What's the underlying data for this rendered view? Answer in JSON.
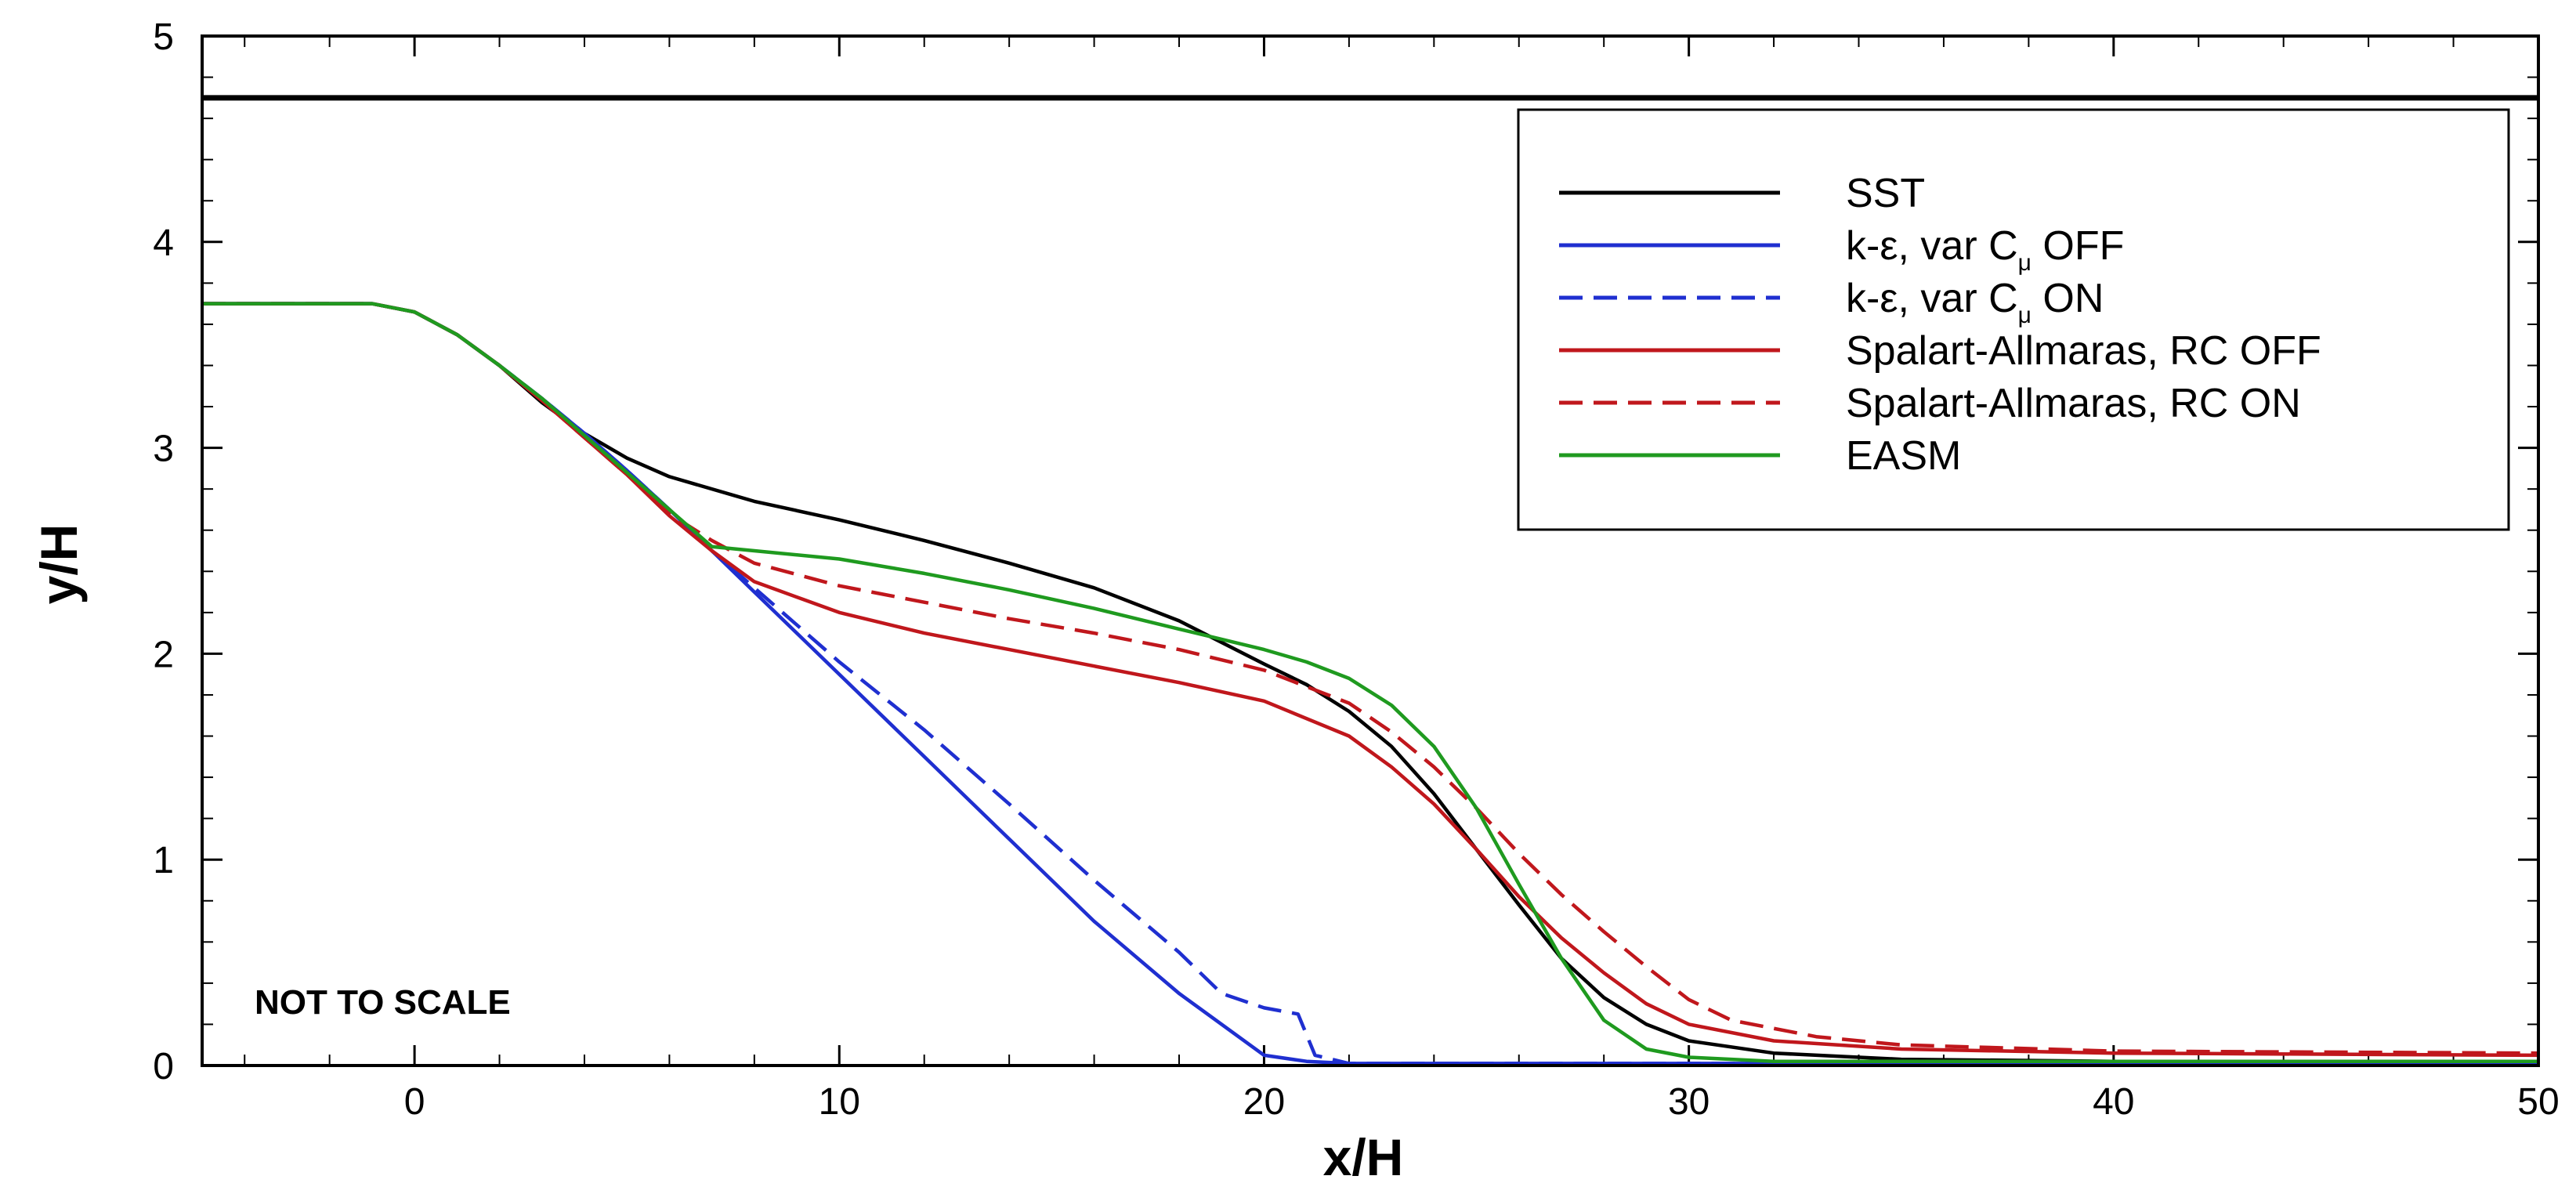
{
  "chart_data": {
    "type": "line",
    "xlabel": "x/H",
    "ylabel": "y/H",
    "xlim": [
      -5,
      50
    ],
    "ylim": [
      0,
      5
    ],
    "xticks": [
      0,
      10,
      20,
      30,
      40,
      50
    ],
    "yticks": [
      0,
      1,
      2,
      3,
      4,
      5
    ],
    "grid": false,
    "legend_placement": "top-right",
    "annotation": "NOT TO SCALE",
    "wall": {
      "label": "",
      "y": 4.7
    },
    "series": [
      {
        "name": "SST",
        "color": "#000000",
        "dash": "solid",
        "points": [
          [
            -5,
            3.7
          ],
          [
            -1,
            3.7
          ],
          [
            0,
            3.66
          ],
          [
            1,
            3.55
          ],
          [
            2,
            3.4
          ],
          [
            3,
            3.22
          ],
          [
            4,
            3.07
          ],
          [
            5,
            2.95
          ],
          [
            6,
            2.86
          ],
          [
            8,
            2.74
          ],
          [
            10,
            2.65
          ],
          [
            12,
            2.55
          ],
          [
            14,
            2.44
          ],
          [
            16,
            2.32
          ],
          [
            18,
            2.16
          ],
          [
            20,
            1.95
          ],
          [
            21,
            1.85
          ],
          [
            22,
            1.72
          ],
          [
            23,
            1.55
          ],
          [
            24,
            1.32
          ],
          [
            25,
            1.05
          ],
          [
            26,
            0.78
          ],
          [
            27,
            0.52
          ],
          [
            28,
            0.33
          ],
          [
            29,
            0.2
          ],
          [
            30,
            0.12
          ],
          [
            32,
            0.06
          ],
          [
            35,
            0.03
          ],
          [
            40,
            0.02
          ],
          [
            50,
            0.02
          ]
        ]
      },
      {
        "name": "k-ε, var Cμ OFF",
        "color": "#1f2fd0",
        "dash": "solid",
        "points": [
          [
            -5,
            3.7
          ],
          [
            -1,
            3.7
          ],
          [
            0,
            3.66
          ],
          [
            1,
            3.55
          ],
          [
            2,
            3.4
          ],
          [
            3,
            3.24
          ],
          [
            4,
            3.07
          ],
          [
            5,
            2.89
          ],
          [
            6,
            2.7
          ],
          [
            7,
            2.5
          ],
          [
            8,
            2.3
          ],
          [
            10,
            1.9
          ],
          [
            12,
            1.5
          ],
          [
            14,
            1.1
          ],
          [
            16,
            0.7
          ],
          [
            18,
            0.35
          ],
          [
            20,
            0.05
          ],
          [
            21,
            0.02
          ],
          [
            22,
            0.01
          ],
          [
            30,
            0.01
          ],
          [
            50,
            0.01
          ]
        ]
      },
      {
        "name": "k-ε, var Cμ ON",
        "color": "#1f2fd0",
        "dash": "dashed",
        "points": [
          [
            -5,
            3.7
          ],
          [
            -1,
            3.7
          ],
          [
            0,
            3.66
          ],
          [
            1,
            3.55
          ],
          [
            2,
            3.4
          ],
          [
            3,
            3.24
          ],
          [
            4,
            3.07
          ],
          [
            5,
            2.89
          ],
          [
            6,
            2.7
          ],
          [
            7,
            2.5
          ],
          [
            8,
            2.32
          ],
          [
            10,
            1.96
          ],
          [
            12,
            1.63
          ],
          [
            14,
            1.27
          ],
          [
            16,
            0.9
          ],
          [
            18,
            0.55
          ],
          [
            19,
            0.35
          ],
          [
            20,
            0.28
          ],
          [
            20.8,
            0.25
          ],
          [
            21.2,
            0.05
          ],
          [
            22,
            0.01
          ],
          [
            30,
            0.01
          ],
          [
            50,
            0.01
          ]
        ]
      },
      {
        "name": "Spalart-Allmaras, RC OFF",
        "color": "#c0171c",
        "dash": "solid",
        "points": [
          [
            -5,
            3.7
          ],
          [
            -1,
            3.7
          ],
          [
            0,
            3.66
          ],
          [
            1,
            3.55
          ],
          [
            2,
            3.4
          ],
          [
            3,
            3.23
          ],
          [
            4,
            3.05
          ],
          [
            5,
            2.87
          ],
          [
            6,
            2.67
          ],
          [
            7,
            2.5
          ],
          [
            8,
            2.35
          ],
          [
            10,
            2.2
          ],
          [
            12,
            2.1
          ],
          [
            14,
            2.02
          ],
          [
            16,
            1.94
          ],
          [
            18,
            1.86
          ],
          [
            20,
            1.77
          ],
          [
            22,
            1.6
          ],
          [
            23,
            1.45
          ],
          [
            24,
            1.27
          ],
          [
            25,
            1.05
          ],
          [
            26,
            0.82
          ],
          [
            27,
            0.62
          ],
          [
            28,
            0.45
          ],
          [
            29,
            0.3
          ],
          [
            30,
            0.2
          ],
          [
            32,
            0.12
          ],
          [
            35,
            0.08
          ],
          [
            40,
            0.06
          ],
          [
            50,
            0.05
          ]
        ]
      },
      {
        "name": "Spalart-Allmaras, RC ON",
        "color": "#c0171c",
        "dash": "dashed",
        "points": [
          [
            -5,
            3.7
          ],
          [
            -1,
            3.7
          ],
          [
            0,
            3.66
          ],
          [
            1,
            3.55
          ],
          [
            2,
            3.4
          ],
          [
            3,
            3.23
          ],
          [
            4,
            3.05
          ],
          [
            5,
            2.87
          ],
          [
            6,
            2.68
          ],
          [
            7,
            2.55
          ],
          [
            8,
            2.44
          ],
          [
            10,
            2.33
          ],
          [
            12,
            2.25
          ],
          [
            14,
            2.17
          ],
          [
            16,
            2.1
          ],
          [
            18,
            2.02
          ],
          [
            20,
            1.92
          ],
          [
            22,
            1.76
          ],
          [
            23,
            1.62
          ],
          [
            24,
            1.45
          ],
          [
            25,
            1.25
          ],
          [
            26,
            1.03
          ],
          [
            27,
            0.83
          ],
          [
            28,
            0.65
          ],
          [
            29,
            0.48
          ],
          [
            30,
            0.32
          ],
          [
            31,
            0.22
          ],
          [
            33,
            0.14
          ],
          [
            35,
            0.1
          ],
          [
            40,
            0.07
          ],
          [
            50,
            0.06
          ]
        ]
      },
      {
        "name": "EASM",
        "color": "#1f9a1f",
        "dash": "solid",
        "points": [
          [
            -5,
            3.7
          ],
          [
            -1,
            3.7
          ],
          [
            0,
            3.66
          ],
          [
            1,
            3.55
          ],
          [
            2,
            3.4
          ],
          [
            3,
            3.24
          ],
          [
            4,
            3.06
          ],
          [
            5,
            2.88
          ],
          [
            6,
            2.7
          ],
          [
            7,
            2.52
          ],
          [
            8,
            2.5
          ],
          [
            10,
            2.46
          ],
          [
            12,
            2.39
          ],
          [
            14,
            2.31
          ],
          [
            16,
            2.22
          ],
          [
            18,
            2.12
          ],
          [
            20,
            2.02
          ],
          [
            21,
            1.96
          ],
          [
            22,
            1.88
          ],
          [
            23,
            1.75
          ],
          [
            24,
            1.55
          ],
          [
            25,
            1.25
          ],
          [
            26,
            0.88
          ],
          [
            27,
            0.52
          ],
          [
            28,
            0.22
          ],
          [
            29,
            0.08
          ],
          [
            30,
            0.04
          ],
          [
            32,
            0.02
          ],
          [
            40,
            0.02
          ],
          [
            50,
            0.02
          ]
        ]
      }
    ]
  },
  "legend": {
    "entries": [
      {
        "text": "SST",
        "sub": "",
        "after": ""
      },
      {
        "text": "k-ε, var C",
        "sub": "μ",
        "after": " OFF"
      },
      {
        "text": "k-ε, var C",
        "sub": "μ",
        "after": " ON"
      },
      {
        "text": "Spalart-Allmaras, RC OFF",
        "sub": "",
        "after": ""
      },
      {
        "text": "Spalart-Allmaras, RC ON",
        "sub": "",
        "after": ""
      },
      {
        "text": "EASM",
        "sub": "",
        "after": ""
      }
    ]
  }
}
